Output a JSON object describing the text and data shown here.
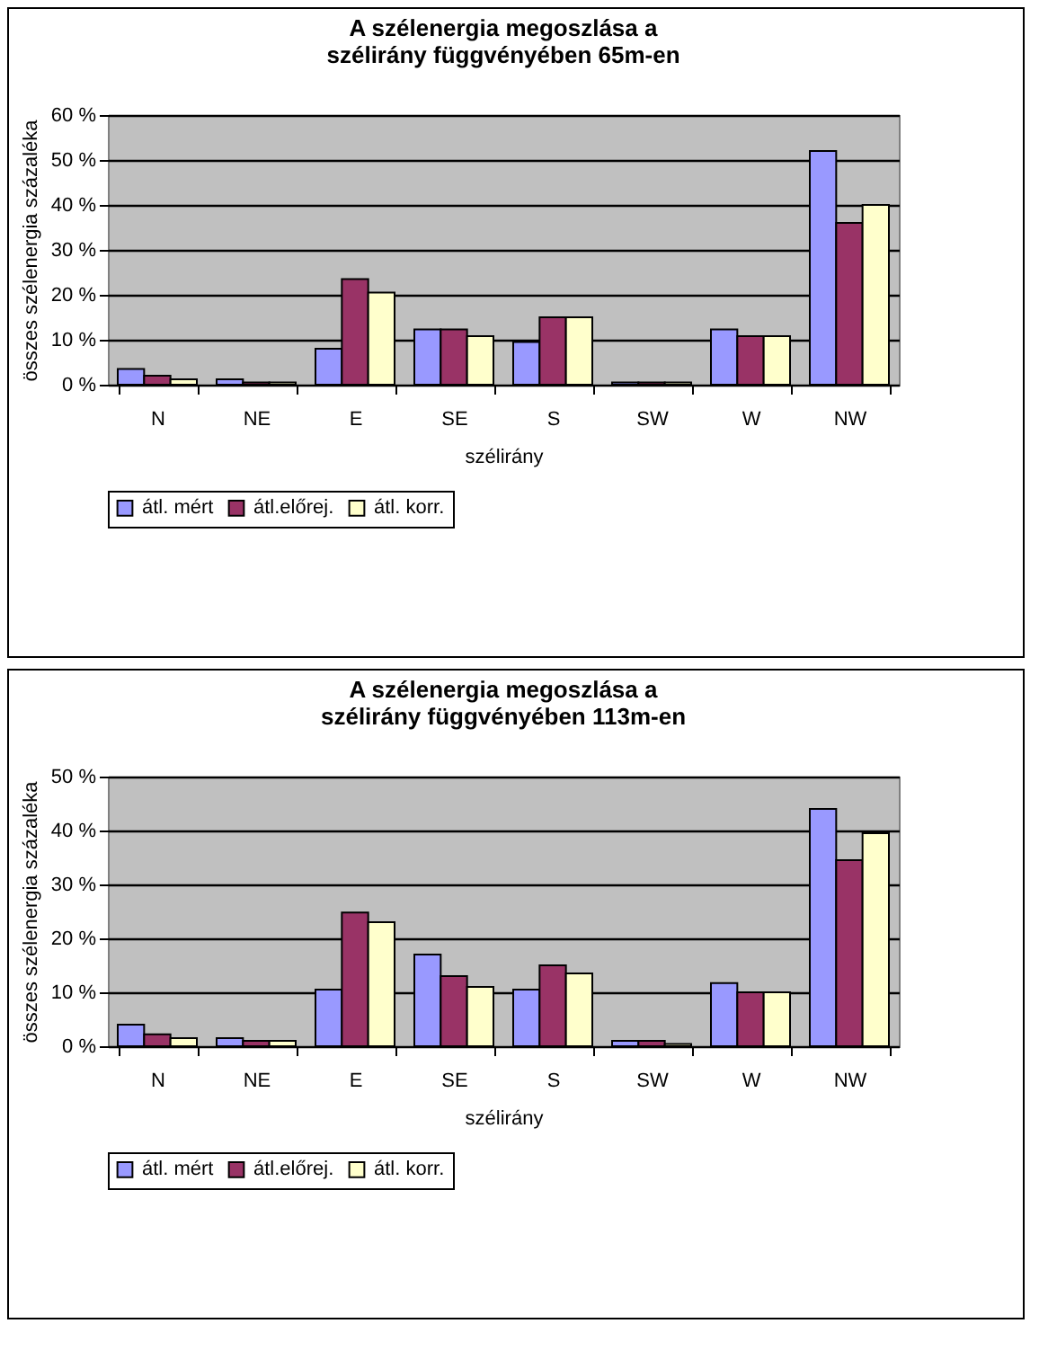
{
  "chart_data": [
    {
      "type": "bar",
      "title": "A szélenergia megoszlása a szélirány függvényében 65m-en",
      "xlabel": "szélirány",
      "ylabel": "összes szélenergia százaléka",
      "categories": [
        "N",
        "NE",
        "E",
        "SE",
        "S",
        "SW",
        "W",
        "NW"
      ],
      "series": [
        {
          "name": "átl. mért",
          "color": "#9999ff",
          "values": [
            3.5,
            1.2,
            8,
            12.3,
            9.5,
            0.5,
            12.3,
            52
          ]
        },
        {
          "name": "átl.előrej.",
          "color": "#993366",
          "values": [
            2,
            0.5,
            23.5,
            12.3,
            15,
            0.5,
            10.8,
            36
          ]
        },
        {
          "name": "átl. korr.",
          "color": "#ffffcc",
          "values": [
            1.2,
            0.5,
            20.5,
            10.8,
            15,
            0.5,
            10.8,
            40
          ]
        }
      ],
      "ylim": [
        0,
        60
      ],
      "yticks": [
        {
          "value": 0,
          "label": "0 %"
        },
        {
          "value": 10,
          "label": "10 %"
        },
        {
          "value": 20,
          "label": "20 %"
        },
        {
          "value": 30,
          "label": "30 %"
        },
        {
          "value": 40,
          "label": "40 %"
        },
        {
          "value": 50,
          "label": "50 %"
        },
        {
          "value": 60,
          "label": "60 %"
        }
      ],
      "grid": "y",
      "legend": "bottom"
    },
    {
      "type": "bar",
      "title": "A szélenergia megoszlása a szélirány függvényében 113m-en",
      "xlabel": "szélirány",
      "ylabel": "összes szélenergia százaléka",
      "categories": [
        "N",
        "NE",
        "E",
        "SE",
        "S",
        "SW",
        "W",
        "NW"
      ],
      "series": [
        {
          "name": "átl. mért",
          "color": "#9999ff",
          "values": [
            4,
            1.5,
            10.5,
            17,
            10.5,
            1,
            11.7,
            44
          ]
        },
        {
          "name": "átl.előrej.",
          "color": "#993366",
          "values": [
            2.2,
            1,
            24.8,
            13,
            15,
            1,
            10,
            34.5
          ]
        },
        {
          "name": "átl. korr.",
          "color": "#ffffcc",
          "values": [
            1.5,
            1,
            23,
            11,
            13.5,
            0.4,
            10,
            39.5
          ]
        }
      ],
      "ylim": [
        0,
        50
      ],
      "yticks": [
        {
          "value": 0,
          "label": "0 %"
        },
        {
          "value": 10,
          "label": "10 %"
        },
        {
          "value": 20,
          "label": "20 %"
        },
        {
          "value": 30,
          "label": "30 %"
        },
        {
          "value": 40,
          "label": "40 %"
        },
        {
          "value": 50,
          "label": "50 %"
        }
      ],
      "grid": "y",
      "legend": "bottom"
    }
  ]
}
